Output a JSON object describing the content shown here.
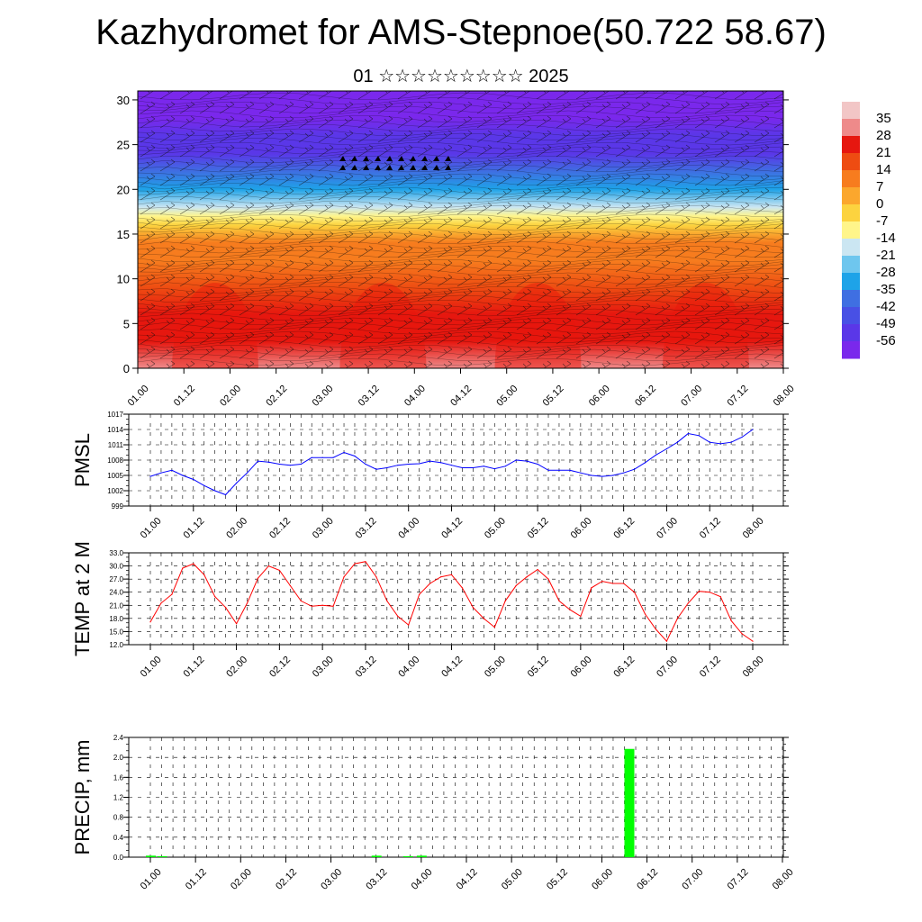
{
  "title": "Kazhydromet for AMS-Stepnoe(50.722 58.67)",
  "subtitle": "01 ☆☆☆☆☆☆☆☆☆ 2025",
  "colors": {
    "pmsl_line": "#0000ff",
    "temp_line": "#ff0000",
    "precip_bar": "#00ff00",
    "grid": "#000000"
  },
  "chart_data": [
    {
      "id": "cross-section",
      "type": "heatmap",
      "title": "",
      "xlabel": "",
      "ylabel": "",
      "x_tick_labels": [
        "01.00",
        "01.12",
        "02.00",
        "02.12",
        "03.00",
        "03.12",
        "04.00",
        "04.12",
        "05.00",
        "05.12",
        "06.00",
        "06.12",
        "07.00",
        "07.12",
        "08.00"
      ],
      "y_ticks": [
        0,
        5,
        10,
        15,
        20,
        25,
        30
      ],
      "ylim": [
        0,
        31
      ],
      "colorbar": {
        "labels": [
          35,
          28,
          21,
          14,
          7,
          0,
          -7,
          -14,
          -21,
          -28,
          -35,
          -42,
          -49,
          -56
        ],
        "colors": [
          "#f2c6c6",
          "#ee8a8a",
          "#e6170f",
          "#ee4c12",
          "#f77c1e",
          "#fba72d",
          "#fcd33f",
          "#fff58a",
          "#cbe6f2",
          "#6ec6ee",
          "#1ea3e8",
          "#3f6fe2",
          "#4850e5",
          "#5a37e8",
          "#7a28ec"
        ]
      },
      "temperature_profile": {
        "heights": [
          0,
          3,
          6,
          9,
          12,
          14,
          16,
          17,
          18,
          20,
          22,
          24,
          26,
          28,
          30
        ],
        "values": [
          29,
          27,
          24,
          20,
          14,
          8,
          0,
          -7,
          -17,
          -30,
          -40,
          -49,
          -53,
          -56,
          -58
        ]
      },
      "wind_barbs": "dense black wind barbs overlay"
    },
    {
      "id": "pmsl",
      "type": "line",
      "ylabel": "PMSL",
      "x_tick_labels": [
        "01.00",
        "01.12",
        "02.00",
        "02.12",
        "03.00",
        "03.12",
        "04.00",
        "04.12",
        "05.00",
        "05.12",
        "06.00",
        "06.12",
        "07.00",
        "07.12",
        "08.00"
      ],
      "y_tick_labels": [
        "999",
        "1002",
        "1005",
        "1008",
        "1011",
        "1014",
        "1017"
      ],
      "ylim": [
        999,
        1017
      ],
      "x": [
        0,
        0.125,
        0.25,
        0.375,
        0.5,
        0.625,
        0.75,
        0.875,
        1,
        1.125,
        1.25,
        1.375,
        1.5,
        1.625,
        1.75,
        1.875,
        2,
        2.125,
        2.25,
        2.375,
        2.5,
        2.625,
        2.75,
        2.875,
        3,
        3.125,
        3.25,
        3.375,
        3.5,
        3.625,
        3.75,
        3.875,
        4,
        4.125,
        4.25,
        4.375,
        4.5,
        4.625,
        4.75,
        4.875,
        5,
        5.125,
        5.25,
        5.375,
        5.5,
        5.625,
        5.75,
        5.875,
        6,
        6.125,
        6.25,
        6.375,
        6.5,
        6.625,
        6.75,
        6.875,
        7
      ],
      "values": [
        1004.8,
        1005.5,
        1006.0,
        1005.0,
        1004.2,
        1003.0,
        1002.0,
        1001.2,
        1003.5,
        1005.5,
        1007.8,
        1007.6,
        1007.2,
        1007.0,
        1007.2,
        1008.5,
        1008.5,
        1008.5,
        1009.5,
        1008.8,
        1007.2,
        1006.2,
        1006.5,
        1007.0,
        1007.2,
        1007.3,
        1007.8,
        1007.5,
        1007.0,
        1006.5,
        1006.5,
        1006.8,
        1006.3,
        1006.8,
        1008.0,
        1007.8,
        1007.2,
        1006.0,
        1006.0,
        1006.0,
        1005.5,
        1005.0,
        1004.8,
        1005.0,
        1005.5,
        1006.2,
        1007.5,
        1009.0,
        1010.2,
        1011.5,
        1013.2,
        1012.8,
        1011.5,
        1011.2,
        1011.5,
        1012.5,
        1014.0
      ]
    },
    {
      "id": "temp2m",
      "type": "line",
      "ylabel": "TEMP at 2 M",
      "x_tick_labels": [
        "01.00",
        "01.12",
        "02.00",
        "02.12",
        "03.00",
        "03.12",
        "04.00",
        "04.12",
        "05.00",
        "05.12",
        "06.00",
        "06.12",
        "07.00",
        "07.12",
        "08.00"
      ],
      "y_tick_labels": [
        "12.0",
        "15.0",
        "18.0",
        "21.0",
        "24.0",
        "27.0",
        "30.0",
        "33.0"
      ],
      "ylim": [
        12,
        33
      ],
      "x": [
        0,
        0.125,
        0.25,
        0.375,
        0.5,
        0.625,
        0.75,
        0.875,
        1,
        1.125,
        1.25,
        1.375,
        1.5,
        1.625,
        1.75,
        1.875,
        2,
        2.125,
        2.25,
        2.375,
        2.5,
        2.625,
        2.75,
        2.875,
        3,
        3.125,
        3.25,
        3.375,
        3.5,
        3.625,
        3.75,
        3.875,
        4,
        4.125,
        4.25,
        4.375,
        4.5,
        4.625,
        4.75,
        4.875,
        5,
        5.125,
        5.25,
        5.375,
        5.5,
        5.625,
        5.75,
        5.875,
        6,
        6.125,
        6.25,
        6.375,
        6.5,
        6.625,
        6.75,
        6.875,
        7
      ],
      "values": [
        17.2,
        21.5,
        23.5,
        29.5,
        30.5,
        28.0,
        23.0,
        20.5,
        16.8,
        21.5,
        27.2,
        30.0,
        29.0,
        25.5,
        22.0,
        20.8,
        21.0,
        20.8,
        27.5,
        30.5,
        31.0,
        27.5,
        22.0,
        18.5,
        16.5,
        23.5,
        26.0,
        27.5,
        28.0,
        25.0,
        20.5,
        18.0,
        16.0,
        22.0,
        25.5,
        27.5,
        29.2,
        27.0,
        22.0,
        20.0,
        18.5,
        25.0,
        26.5,
        26.0,
        26.0,
        24.0,
        19.0,
        15.5,
        12.8,
        18.0,
        21.5,
        24.2,
        24.0,
        23.0,
        17.5,
        14.5,
        12.8
      ]
    },
    {
      "id": "precip",
      "type": "bar",
      "ylabel": "PRECIP, mm",
      "x_tick_labels": [
        "01.00",
        "01.12",
        "02.00",
        "02.12",
        "03.00",
        "03.12",
        "04.00",
        "04.12",
        "05.00",
        "05.12",
        "06.00",
        "06.12",
        "07.00",
        "07.12",
        "08.00"
      ],
      "y_tick_labels": [
        "0.0",
        "0.4",
        "0.8",
        "1.2",
        "1.6",
        "2.0",
        "2.4"
      ],
      "ylim": [
        0,
        2.4
      ],
      "x": [
        0.0,
        0.125,
        2.5,
        2.85,
        3.0,
        5.3
      ],
      "values": [
        0.03,
        0.02,
        0.03,
        0.02,
        0.03,
        2.17
      ]
    }
  ]
}
